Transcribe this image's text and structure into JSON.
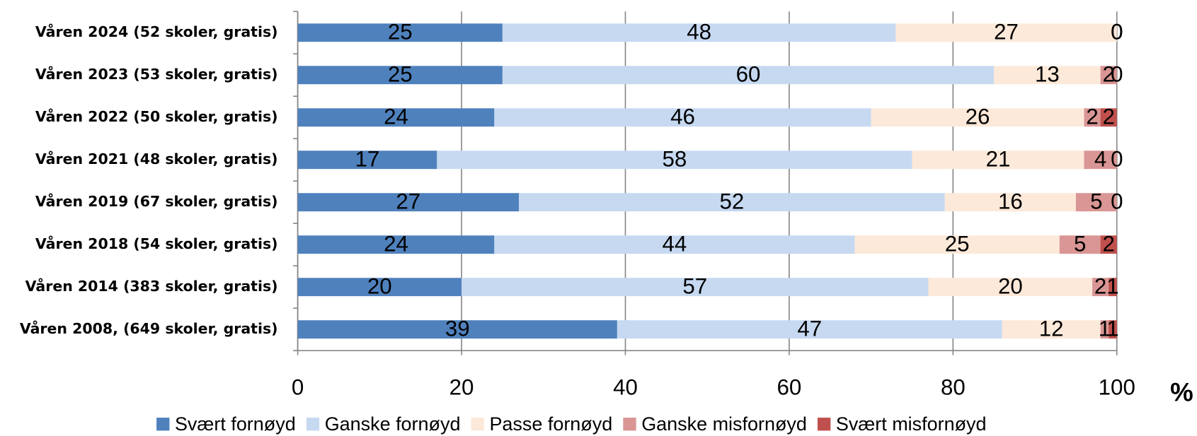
{
  "chart_data": {
    "type": "stacked-bar-horizontal",
    "categories": [
      "Våren 2024 (52 skoler, gratis)",
      "Våren 2023 (53 skoler, gratis)",
      "Våren 2022 (50 skoler, gratis)",
      "Våren 2021 (48 skoler, gratis)",
      "Våren 2019 (67 skoler, gratis)",
      "Våren 2018 (54 skoler, gratis)",
      "Våren 2014 (383 skoler, gratis)",
      "Våren 2008, (649 skoler, gratis)"
    ],
    "series": [
      {
        "name": "Svært fornøyd",
        "color": "#4f81bd",
        "values": [
          25,
          25,
          24,
          17,
          27,
          24,
          20,
          39
        ]
      },
      {
        "name": "Ganske fornøyd",
        "color": "#c6d9f1",
        "values": [
          48,
          60,
          46,
          58,
          52,
          44,
          57,
          47
        ]
      },
      {
        "name": "Passe fornøyd",
        "color": "#fde9d9",
        "values": [
          27,
          13,
          26,
          21,
          16,
          25,
          20,
          12
        ]
      },
      {
        "name": "Ganske misfornøyd",
        "color": "#d99694",
        "values": [
          0,
          2,
          2,
          4,
          5,
          5,
          2,
          1
        ]
      },
      {
        "name": "Svært misfornøyd",
        "color": "#c0504d",
        "values": [
          0,
          0,
          2,
          0,
          0,
          2,
          1,
          1
        ]
      }
    ],
    "x_label": "%",
    "xlim": [
      0,
      100
    ],
    "xticks": [
      0,
      20,
      40,
      60,
      80,
      100
    ],
    "grid": true,
    "legend": "bottom"
  }
}
